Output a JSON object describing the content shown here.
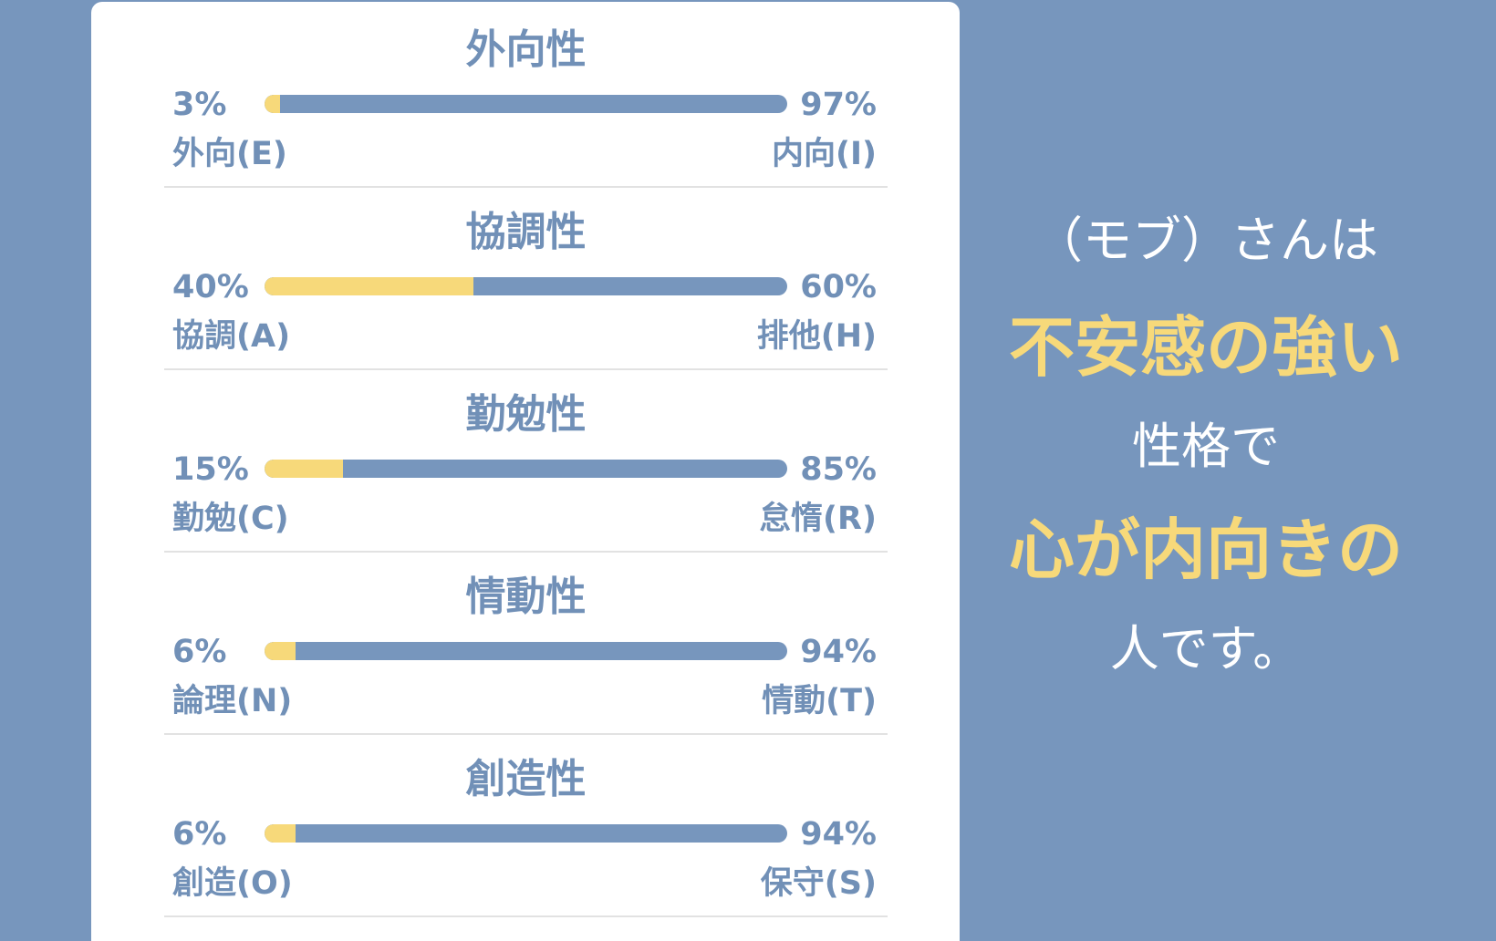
{
  "colors": {
    "background": "#7796bd",
    "card": "#ffffff",
    "text": "#7190b7",
    "accent_yellow": "#f7d97a",
    "bar_blue": "#7796bd"
  },
  "traits": [
    {
      "title": "外向性",
      "left_pct": "3%",
      "right_pct": "97%",
      "left_label": "外向(E)",
      "right_label": "内向(I)",
      "left_value": 3
    },
    {
      "title": "協調性",
      "left_pct": "40%",
      "right_pct": "60%",
      "left_label": "協調(A)",
      "right_label": "排他(H)",
      "left_value": 40
    },
    {
      "title": "勤勉性",
      "left_pct": "15%",
      "right_pct": "85%",
      "left_label": "勤勉(C)",
      "right_label": "怠惰(R)",
      "left_value": 15
    },
    {
      "title": "情動性",
      "left_pct": "6%",
      "right_pct": "94%",
      "left_label": "論理(N)",
      "right_label": "情動(T)",
      "left_value": 6
    },
    {
      "title": "創造性",
      "left_pct": "6%",
      "right_pct": "94%",
      "left_label": "創造(O)",
      "right_label": "保守(S)",
      "left_value": 6
    }
  ],
  "summary": {
    "line1": "（モブ）さんは",
    "line2": "不安感の強い",
    "line3": "性格で",
    "line4": "心が内向きの",
    "line5": "人です。"
  }
}
